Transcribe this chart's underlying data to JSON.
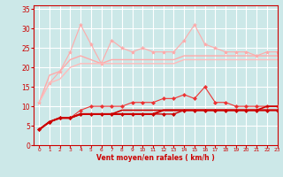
{
  "bg_color": "#cce8e8",
  "grid_color": "#ffffff",
  "xlabel": "Vent moyen/en rafales ( km/h )",
  "xlabel_color": "#cc0000",
  "tick_color": "#cc0000",
  "xlim": [
    -0.5,
    23
  ],
  "ylim": [
    0,
    36
  ],
  "yticks": [
    0,
    5,
    10,
    15,
    20,
    25,
    30,
    35
  ],
  "xticks": [
    0,
    1,
    2,
    3,
    4,
    5,
    6,
    7,
    8,
    9,
    10,
    11,
    12,
    13,
    14,
    15,
    16,
    17,
    18,
    19,
    20,
    21,
    22,
    23
  ],
  "series": [
    {
      "x": [
        0,
        1,
        2,
        3,
        4,
        5,
        6,
        7,
        8,
        9,
        10,
        11,
        12,
        13,
        14,
        15,
        16,
        17,
        18,
        19,
        20,
        21,
        22,
        23
      ],
      "y": [
        11,
        16,
        19,
        24,
        31,
        26,
        21,
        27,
        25,
        24,
        25,
        24,
        24,
        24,
        27,
        31,
        26,
        25,
        24,
        24,
        24,
        23,
        24,
        24
      ],
      "color": "#ffaaaa",
      "lw": 0.8,
      "marker": "*",
      "ms": 3,
      "zorder": 2
    },
    {
      "x": [
        0,
        1,
        2,
        3,
        4,
        5,
        6,
        7,
        8,
        9,
        10,
        11,
        12,
        13,
        14,
        15,
        16,
        17,
        18,
        19,
        20,
        21,
        22,
        23
      ],
      "y": [
        11,
        18,
        19,
        22,
        23,
        22,
        21,
        22,
        22,
        22,
        22,
        22,
        22,
        22,
        23,
        23,
        23,
        23,
        23,
        23,
        23,
        23,
        23,
        23
      ],
      "color": "#ffaaaa",
      "lw": 1.0,
      "marker": null,
      "ms": 0,
      "zorder": 2
    },
    {
      "x": [
        0,
        1,
        2,
        3,
        4,
        5,
        6,
        7,
        8,
        9,
        10,
        11,
        12,
        13,
        14,
        15,
        16,
        17,
        18,
        19,
        20,
        21,
        22,
        23
      ],
      "y": [
        11,
        16,
        17,
        20,
        21,
        21,
        21,
        21,
        21,
        21,
        21,
        21,
        21,
        21,
        22,
        22,
        22,
        22,
        22,
        22,
        22,
        22,
        22,
        22
      ],
      "color": "#ffbbbb",
      "lw": 1.0,
      "marker": null,
      "ms": 0,
      "zorder": 2
    },
    {
      "x": [
        0,
        1,
        2,
        3,
        4,
        5,
        6,
        7,
        8,
        9,
        10,
        11,
        12,
        13,
        14,
        15,
        16,
        17,
        18,
        19,
        20,
        21,
        22,
        23
      ],
      "y": [
        4,
        6,
        7,
        7,
        9,
        10,
        10,
        10,
        10,
        11,
        11,
        11,
        12,
        12,
        13,
        12,
        15,
        11,
        11,
        10,
        10,
        10,
        10,
        10
      ],
      "color": "#ee3333",
      "lw": 0.8,
      "marker": "D",
      "ms": 2,
      "zorder": 3
    },
    {
      "x": [
        0,
        1,
        2,
        3,
        4,
        5,
        6,
        7,
        8,
        9,
        10,
        11,
        12,
        13,
        14,
        15,
        16,
        17,
        18,
        19,
        20,
        21,
        22,
        23
      ],
      "y": [
        4,
        6,
        7,
        7,
        8,
        8,
        8,
        8,
        9,
        9,
        9,
        9,
        9,
        9,
        9,
        9,
        9,
        9,
        9,
        9,
        9,
        9,
        10,
        10
      ],
      "color": "#cc0000",
      "lw": 1.2,
      "marker": null,
      "ms": 0,
      "zorder": 3
    },
    {
      "x": [
        0,
        1,
        2,
        3,
        4,
        5,
        6,
        7,
        8,
        9,
        10,
        11,
        12,
        13,
        14,
        15,
        16,
        17,
        18,
        19,
        20,
        21,
        22,
        23
      ],
      "y": [
        4,
        6,
        7,
        7,
        8,
        8,
        8,
        8,
        8,
        8,
        8,
        8,
        9,
        9,
        9,
        9,
        9,
        9,
        9,
        9,
        9,
        9,
        9,
        9
      ],
      "color": "#cc0000",
      "lw": 1.5,
      "marker": null,
      "ms": 0,
      "zorder": 3
    },
    {
      "x": [
        0,
        1,
        2,
        3,
        4,
        5,
        6,
        7,
        8,
        9,
        10,
        11,
        12,
        13,
        14,
        15,
        16,
        17,
        18,
        19,
        20,
        21,
        22,
        23
      ],
      "y": [
        4,
        6,
        7,
        7,
        8,
        8,
        8,
        8,
        8,
        8,
        8,
        8,
        8,
        8,
        9,
        9,
        9,
        9,
        9,
        9,
        9,
        9,
        9,
        9
      ],
      "color": "#cc0000",
      "lw": 1.0,
      "marker": "D",
      "ms": 2,
      "zorder": 3
    }
  ]
}
